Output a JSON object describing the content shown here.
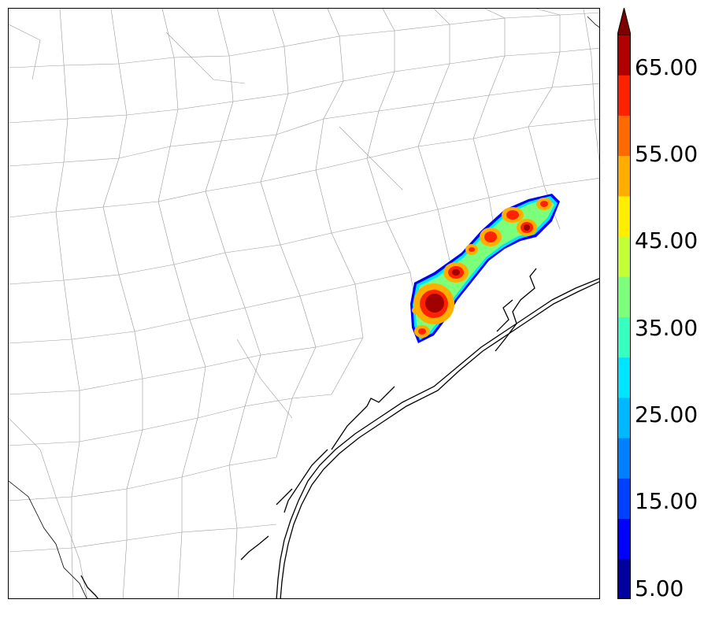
{
  "colorbar": {
    "tick_labels": [
      "5.00",
      "15.00",
      "25.00",
      "35.00",
      "45.00",
      "55.00",
      "65.00"
    ],
    "levels": [
      5,
      10,
      15,
      20,
      25,
      30,
      35,
      40,
      45,
      50,
      55,
      60,
      65,
      70
    ],
    "colors": [
      "#00009e",
      "#0000ff",
      "#0040ff",
      "#0080ff",
      "#00b8ff",
      "#00e5ff",
      "#36ffc0",
      "#7cff7a",
      "#c2ff36",
      "#ffee00",
      "#ffae00",
      "#ff6a00",
      "#ff2200",
      "#b00000"
    ],
    "extend_color": "#7d0000"
  },
  "map": {
    "features": [
      "county-boundaries",
      "coastline",
      "precipitation-field"
    ],
    "max_value_color": "#a00000"
  }
}
